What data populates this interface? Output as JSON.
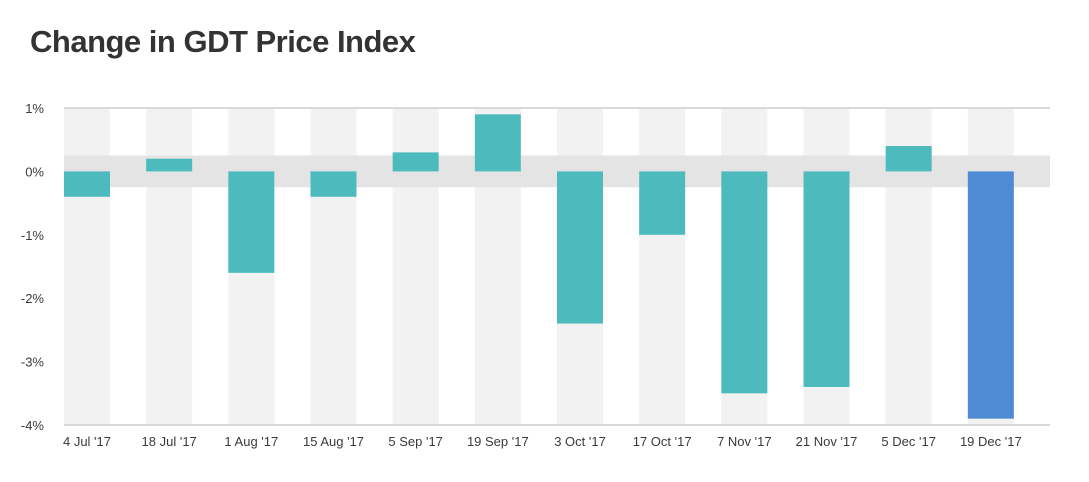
{
  "chart_data": {
    "type": "bar",
    "title": "Change in GDT Price Index",
    "categories": [
      "4 Jul '17",
      "18 Jul '17",
      "1 Aug '17",
      "15 Aug '17",
      "5 Sep '17",
      "19 Sep '17",
      "3 Oct '17",
      "17 Oct '17",
      "7 Nov '17",
      "21 Nov '17",
      "5 Dec '17",
      "19 Dec '17"
    ],
    "values": [
      -0.4,
      0.2,
      -1.6,
      -0.4,
      0.3,
      0.9,
      -2.4,
      -1.0,
      -3.5,
      -3.4,
      0.4,
      -3.9
    ],
    "ylim": [
      -4,
      1
    ],
    "yticks": [
      1,
      0,
      -1,
      -2,
      -3,
      -4
    ],
    "ytick_labels": [
      "1%",
      "0%",
      "-1%",
      "-2%",
      "-3%",
      "-4%"
    ],
    "neutral_band": [
      -0.25,
      0.25
    ],
    "grid": false,
    "colors": {
      "bar": "#4dbbbd",
      "highlight_bar": "#4f8bd4",
      "column_band": "#f2f2f2",
      "neutral_band": "#e4e4e4",
      "axis_line": "#d9d9d9"
    },
    "highlight_index": 11
  }
}
